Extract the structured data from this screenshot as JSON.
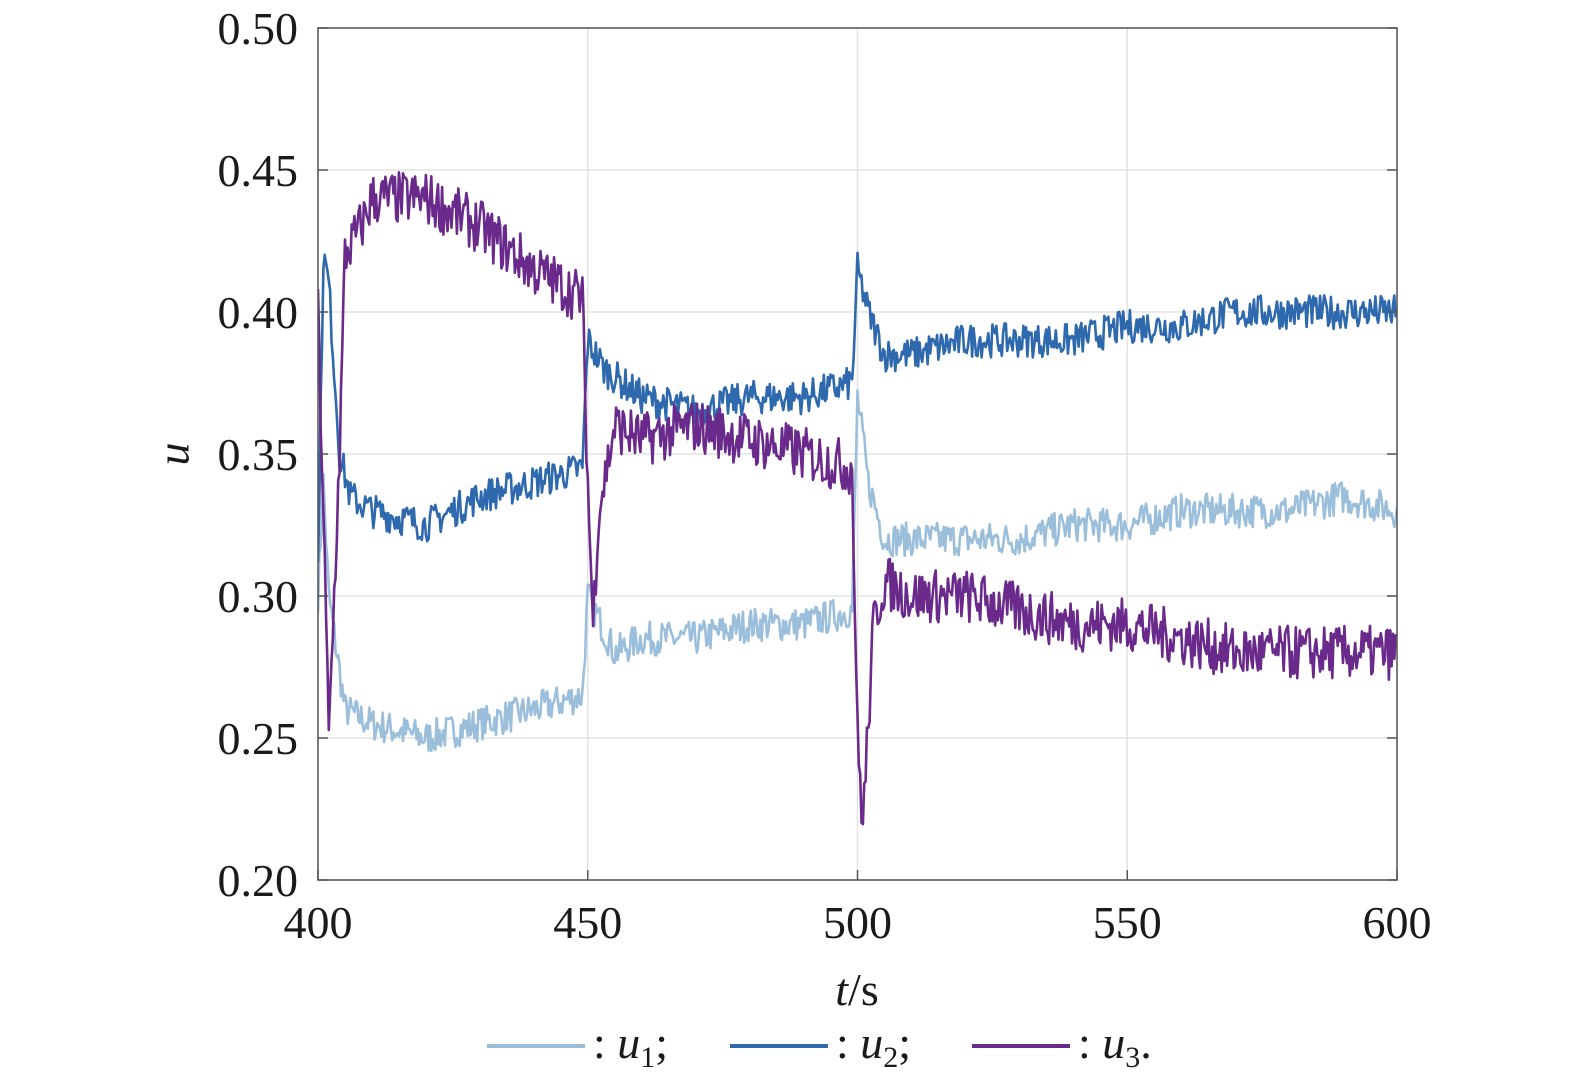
{
  "chart_data": {
    "type": "line",
    "title": "",
    "xlabel": "t/s",
    "xlabel_var": "t",
    "xlabel_unit": "/s",
    "ylabel": "u",
    "xlim": [
      400,
      600
    ],
    "ylim": [
      0.2,
      0.5
    ],
    "xticks": [
      "400",
      "450",
      "500",
      "550",
      "600"
    ],
    "yticks": [
      "0.20",
      "0.25",
      "0.30",
      "0.35",
      "0.40",
      "0.45",
      "0.50"
    ],
    "grid": true,
    "legend_position": "bottom",
    "noise_amplitude": 0.006,
    "series": [
      {
        "name": "u1",
        "legend_var": "u",
        "legend_sub": "1",
        "legend_end": ";",
        "color": "#9bbfdb",
        "x": [
          400,
          401,
          402,
          405,
          410,
          420,
          430,
          440,
          449,
          450,
          455,
          460,
          470,
          480,
          490,
          499,
          500,
          502,
          505,
          510,
          520,
          530,
          540,
          550,
          560,
          570,
          580,
          590,
          600
        ],
        "y": [
          0.3,
          0.34,
          0.3,
          0.26,
          0.255,
          0.25,
          0.255,
          0.26,
          0.265,
          0.3,
          0.28,
          0.285,
          0.285,
          0.29,
          0.29,
          0.295,
          0.37,
          0.34,
          0.32,
          0.32,
          0.32,
          0.32,
          0.325,
          0.325,
          0.33,
          0.33,
          0.33,
          0.335,
          0.33
        ]
      },
      {
        "name": "u2",
        "legend_var": "u",
        "legend_sub": "2",
        "legend_end": ";",
        "color": "#2e69ad",
        "x": [
          400,
          401,
          402,
          404,
          406,
          410,
          420,
          430,
          440,
          449,
          450,
          453,
          460,
          470,
          480,
          490,
          499,
          500,
          502,
          505,
          510,
          520,
          530,
          540,
          550,
          560,
          570,
          580,
          590,
          600
        ],
        "y": [
          0.31,
          0.42,
          0.41,
          0.35,
          0.335,
          0.33,
          0.325,
          0.335,
          0.34,
          0.345,
          0.39,
          0.38,
          0.37,
          0.365,
          0.37,
          0.37,
          0.375,
          0.415,
          0.4,
          0.385,
          0.385,
          0.39,
          0.39,
          0.39,
          0.395,
          0.395,
          0.4,
          0.4,
          0.4,
          0.4
        ]
      },
      {
        "name": "u3",
        "legend_var": "u",
        "legend_sub": "3",
        "legend_end": ".",
        "color": "#6a2a8b",
        "x": [
          400,
          401,
          402,
          404,
          405,
          408,
          410,
          420,
          430,
          440,
          449,
          450,
          451,
          452,
          455,
          460,
          470,
          480,
          490,
          499,
          500,
          501,
          503,
          505,
          510,
          520,
          530,
          540,
          550,
          560,
          570,
          580,
          590,
          600
        ],
        "y": [
          0.4,
          0.33,
          0.25,
          0.35,
          0.42,
          0.43,
          0.44,
          0.44,
          0.43,
          0.415,
          0.405,
          0.34,
          0.29,
          0.33,
          0.36,
          0.355,
          0.36,
          0.355,
          0.35,
          0.345,
          0.25,
          0.22,
          0.29,
          0.305,
          0.3,
          0.3,
          0.295,
          0.29,
          0.29,
          0.285,
          0.28,
          0.28,
          0.28,
          0.28
        ]
      }
    ]
  }
}
